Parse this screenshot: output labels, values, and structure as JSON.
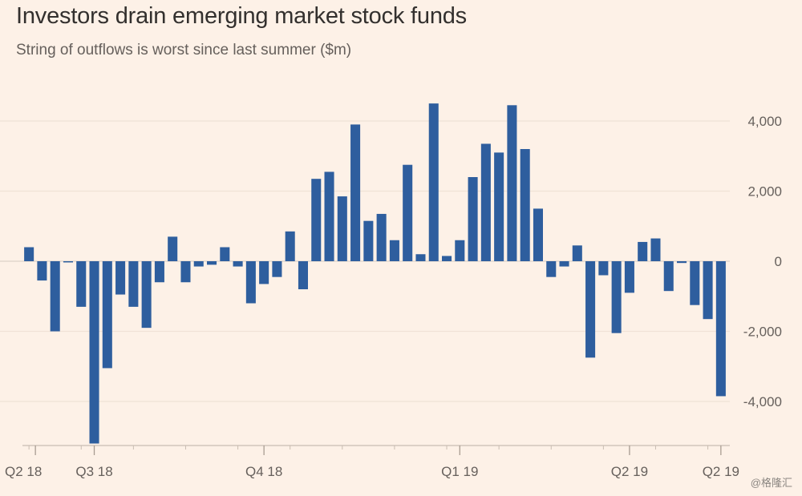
{
  "chart_data": {
    "type": "bar",
    "title": "Investors drain emerging market stock funds",
    "subtitle": "String of outflows is worst since last summer ($m)",
    "xlabel": "",
    "ylabel": "",
    "ylim": [
      -5200,
      4600
    ],
    "grid": true,
    "y_ticks": [
      {
        "value": 4000,
        "label": "4,000"
      },
      {
        "value": 2000,
        "label": "2,000"
      },
      {
        "value": 0,
        "label": "0"
      },
      {
        "value": -2000,
        "label": "-2,000"
      },
      {
        "value": -4000,
        "label": "-4,000"
      }
    ],
    "x_ticks": [
      {
        "index": 0,
        "label": "Q2 18"
      },
      {
        "index": 5,
        "label": "Q3 18"
      },
      {
        "index": 18,
        "label": "Q4 18"
      },
      {
        "index": 33,
        "label": "Q1 19"
      },
      {
        "index": 46,
        "label": "Q2 19"
      },
      {
        "index": 53,
        "label": "Q2 19"
      }
    ],
    "values": [
      400,
      -550,
      -2000,
      -30,
      -1300,
      -5200,
      -3050,
      -950,
      -1300,
      -1900,
      -600,
      700,
      -600,
      -150,
      -100,
      400,
      -150,
      -1200,
      -650,
      -450,
      850,
      -800,
      2350,
      2550,
      1850,
      3900,
      1150,
      1350,
      600,
      2750,
      200,
      4500,
      150,
      600,
      2400,
      3350,
      3100,
      4450,
      3200,
      1500,
      -450,
      -150,
      450,
      -2750,
      -400,
      -2050,
      -900,
      550,
      650,
      -850,
      -50,
      -1250,
      -1650,
      -3850
    ],
    "bar_color": "#2e5e9e"
  },
  "watermark": "@格隆汇"
}
